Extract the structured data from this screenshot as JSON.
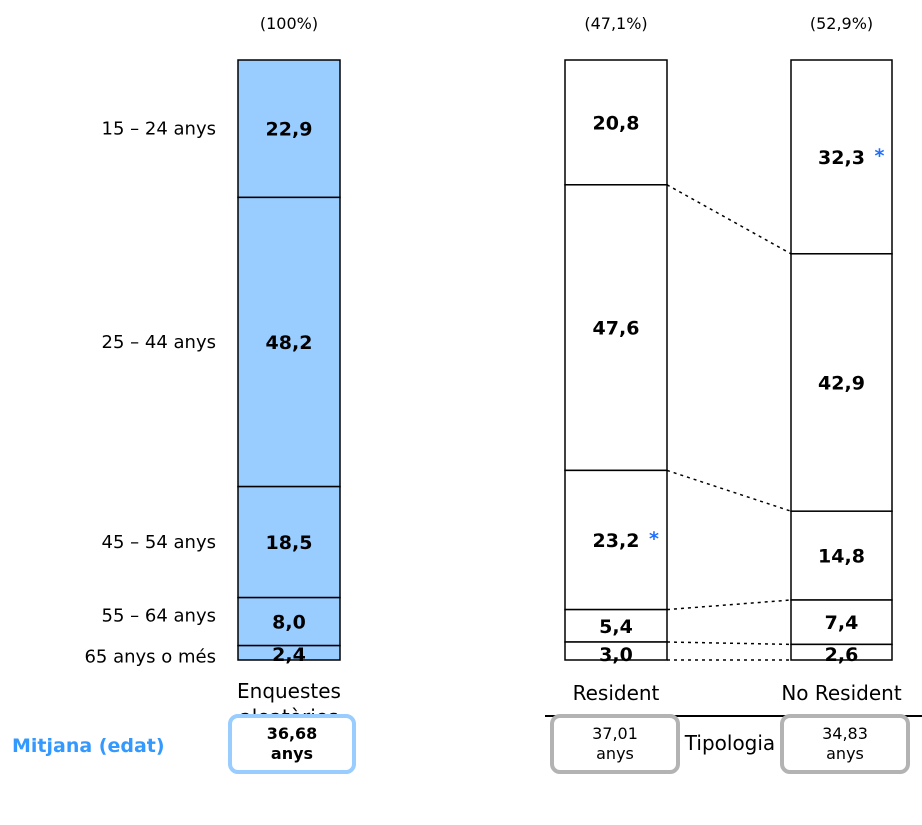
{
  "chart_data": {
    "type": "bar",
    "stacked": true,
    "percent_of_total": [
      "(100%)",
      "(47,1%)",
      "(52,9%)"
    ],
    "categories": [
      "15 – 24 anys",
      "25 – 44 anys",
      "45 – 54 anys",
      "55 – 64 anys",
      "65 anys o més"
    ],
    "columns": [
      "Enquestes\naleatòries",
      "Resident",
      "No Resident"
    ],
    "series": [
      {
        "values": [
          22.9,
          48.2,
          18.5,
          8.0,
          2.4
        ],
        "labels": [
          "22,9",
          "48,2",
          "18,5",
          "8,0",
          "2,4"
        ],
        "significant": [
          false,
          false,
          false,
          false,
          false
        ]
      },
      {
        "values": [
          20.8,
          47.6,
          23.2,
          5.4,
          3.0
        ],
        "labels": [
          "20,8",
          "47,6",
          "23,2",
          "5,4",
          "3,0"
        ],
        "significant": [
          false,
          false,
          true,
          false,
          false
        ]
      },
      {
        "values": [
          32.3,
          42.9,
          14.8,
          7.4,
          2.6
        ],
        "labels": [
          "32,3",
          "42,9",
          "14,8",
          "7,4",
          "2,6"
        ],
        "significant": [
          true,
          false,
          false,
          false,
          false
        ]
      }
    ],
    "group_label": "Tipologia",
    "significance_marker": "*",
    "colors": {
      "first_column_fill": "#99CCFF",
      "other_fill": "#FFFFFF",
      "marker": "#1f6fff"
    },
    "mean": {
      "title": "Mitjana (edat)",
      "values": [
        {
          "value": "36,68",
          "unit": "anys"
        },
        {
          "value": "37,01",
          "unit": "anys"
        },
        {
          "value": "34,83",
          "unit": "anys"
        }
      ],
      "colors": {
        "title": "#3399FF",
        "main_border": "#99CCFF",
        "sub_border": "#b3b3b3"
      }
    }
  }
}
